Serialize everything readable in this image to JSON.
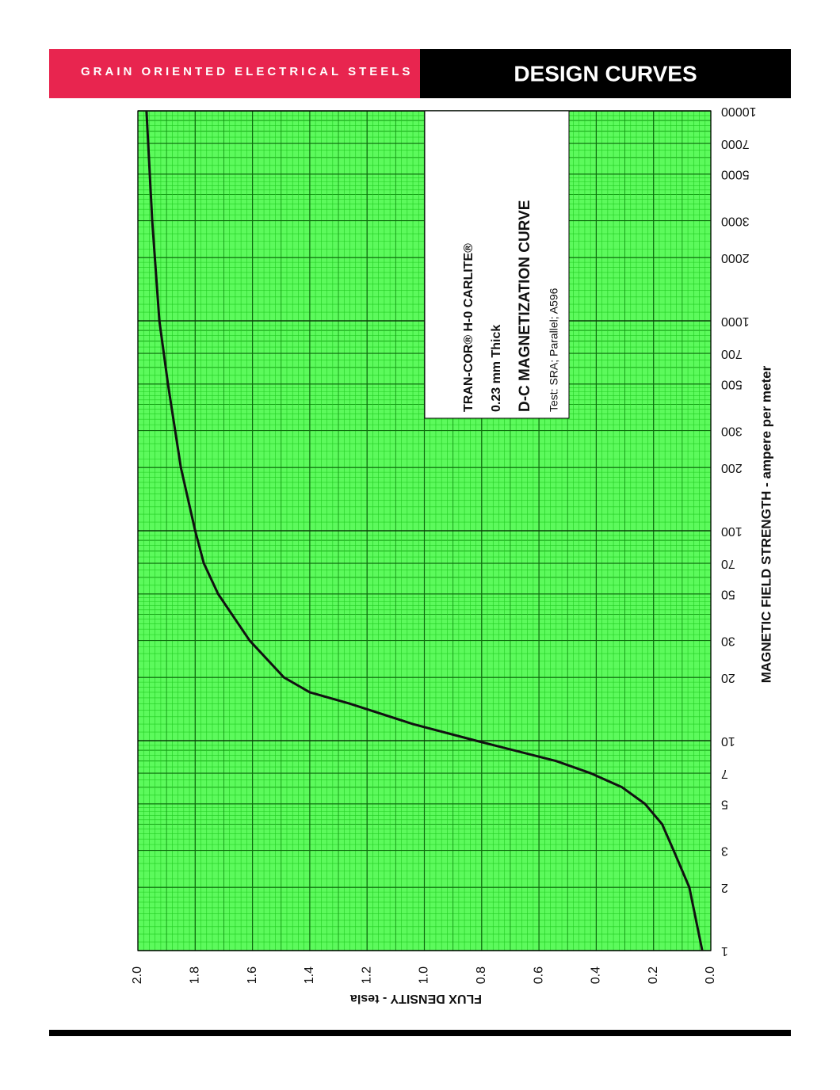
{
  "header": {
    "left": "GRAIN ORIENTED ELECTRICAL STEELS",
    "right": "DESIGN CURVES"
  },
  "chart_data": {
    "type": "line",
    "x_label": "MAGNETIC FIELD STRENGTH - ampere per meter",
    "y_label": "FLUX DENSITY - tesla",
    "annotation": [
      "TRAN-COR® H-0 CARLITE®",
      "0.23 mm Thick",
      "D-C MAGNETIZATION CURVE",
      "Test: SRA; Parallel; A596"
    ],
    "x_scale": "log",
    "xlim": [
      1,
      10000
    ],
    "ylim": [
      0,
      2
    ],
    "xticks": [
      1,
      2,
      3,
      5,
      7,
      10,
      20,
      30,
      50,
      70,
      100,
      200,
      300,
      500,
      700,
      1000,
      2000,
      3000,
      5000,
      7000,
      10000
    ],
    "yticks": [
      {
        "value": 0,
        "label": "0.0"
      },
      0.2,
      0.4,
      0.6,
      0.8,
      {
        "value": 1,
        "label": "1.0"
      },
      1.2,
      1.4,
      1.6,
      1.8,
      {
        "value": 2,
        "label": "2.0"
      }
    ],
    "grid": true,
    "series": [
      {
        "color": "#111111",
        "x": [
          1,
          2,
          3,
          4,
          5,
          6,
          7,
          8,
          10,
          12,
          15,
          17,
          20,
          30,
          50,
          70,
          100,
          200,
          500,
          1000,
          3000,
          10000
        ],
        "values": [
          0.03,
          0.075,
          0.13,
          0.17,
          0.23,
          0.31,
          0.42,
          0.54,
          0.82,
          1.04,
          1.26,
          1.4,
          1.49,
          1.61,
          1.72,
          1.77,
          1.8,
          1.85,
          1.895,
          1.925,
          1.95,
          1.97
        ]
      }
    ]
  }
}
